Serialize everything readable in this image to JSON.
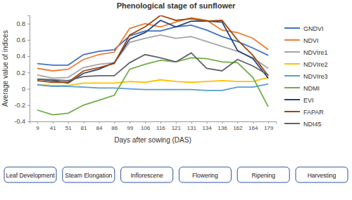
{
  "chart_data": {
    "type": "line",
    "title": "Phenological stage of sunflower",
    "x_label": "Days after sowing (DAS)",
    "y_label": "Average value of indices",
    "categories": [
      9,
      41,
      51,
      81,
      84,
      86,
      99,
      106,
      116,
      121,
      131,
      134,
      136,
      162,
      164,
      179
    ],
    "ylim": [
      -0.4,
      0.9
    ],
    "yticks": [
      -0.4,
      -0.2,
      0,
      0.2,
      0.4,
      0.6,
      0.8
    ],
    "grid": false,
    "legend": "right",
    "series": [
      {
        "name": "GNDVI",
        "color": "#4472C4",
        "values": [
          0.31,
          0.29,
          0.29,
          0.42,
          0.46,
          0.48,
          0.65,
          0.71,
          0.71,
          0.76,
          0.78,
          0.72,
          0.64,
          0.58,
          0.5,
          0.41
        ]
      },
      {
        "name": "NDVI",
        "color": "#ED7D31",
        "values": [
          0.25,
          0.22,
          0.24,
          0.36,
          0.42,
          0.45,
          0.74,
          0.8,
          0.76,
          0.82,
          0.87,
          0.84,
          0.72,
          0.69,
          0.62,
          0.48
        ]
      },
      {
        "name": "NDVIre1",
        "color": "#A5A5A5",
        "values": [
          0.17,
          0.13,
          0.14,
          0.26,
          0.3,
          0.32,
          0.57,
          0.62,
          0.66,
          0.62,
          0.64,
          0.58,
          0.52,
          0.46,
          0.38,
          0.25
        ]
      },
      {
        "name": "NDVIre2",
        "color": "#FFC000",
        "values": [
          0.05,
          0.04,
          0.04,
          0.07,
          0.07,
          0.07,
          0.09,
          0.08,
          0.11,
          0.09,
          0.08,
          0.09,
          0.1,
          0.09,
          0.09,
          0.14
        ]
      },
      {
        "name": "NDVIre3",
        "color": "#5B9BD5",
        "values": [
          0.05,
          0.03,
          0.03,
          0.02,
          0.01,
          0.01,
          0.0,
          -0.01,
          -0.01,
          -0.01,
          -0.01,
          -0.02,
          -0.02,
          0.02,
          0.02,
          0.06
        ]
      },
      {
        "name": "NDMI",
        "color": "#70AD47",
        "values": [
          -0.26,
          -0.32,
          -0.3,
          -0.2,
          -0.14,
          -0.08,
          0.24,
          0.3,
          0.35,
          0.33,
          0.38,
          0.37,
          0.33,
          0.32,
          0.14,
          -0.22
        ]
      },
      {
        "name": "EVI",
        "color": "#264478",
        "values": [
          0.12,
          0.1,
          0.07,
          0.19,
          0.24,
          0.32,
          0.61,
          0.69,
          0.84,
          0.76,
          0.83,
          0.83,
          0.82,
          0.47,
          0.37,
          0.13
        ]
      },
      {
        "name": "FAPAR",
        "color": "#9E480E",
        "values": [
          0.1,
          0.08,
          0.08,
          0.22,
          0.26,
          0.31,
          0.66,
          0.76,
          0.9,
          0.84,
          0.86,
          0.83,
          0.84,
          0.6,
          0.41,
          0.16
        ]
      },
      {
        "name": "NDI45",
        "color": "#636363",
        "values": [
          0.12,
          0.11,
          0.1,
          0.15,
          0.16,
          0.16,
          0.32,
          0.42,
          0.38,
          0.33,
          0.44,
          0.25,
          0.22,
          0.36,
          0.28,
          0.17
        ]
      }
    ],
    "stages": [
      "Leaf Development",
      "Steam Elongation",
      "Inflorescene",
      "Flowering",
      "Ripening",
      "Harvesting"
    ]
  }
}
